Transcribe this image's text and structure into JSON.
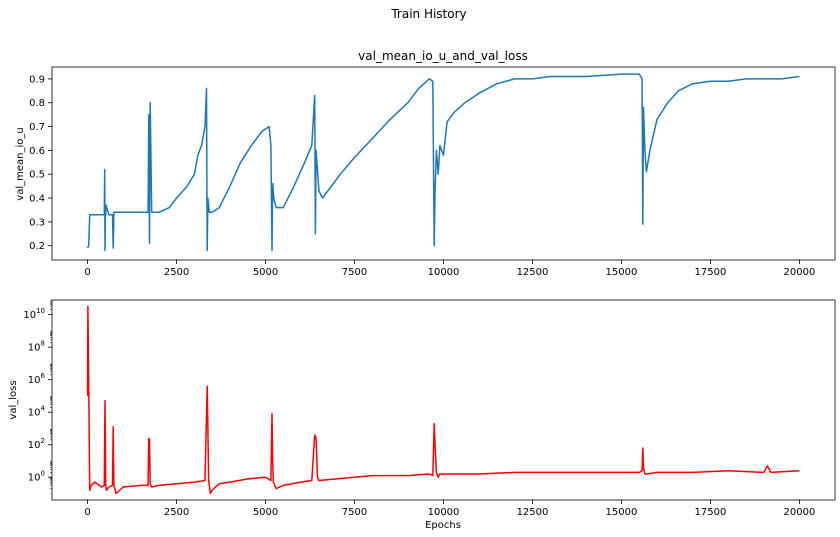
{
  "figure": {
    "suptitle": "Train History"
  },
  "chart_data": [
    {
      "type": "line",
      "title": "val_mean_io_u_and_val_loss",
      "xlabel": "",
      "ylabel": "val_mean_io_u",
      "xlim": [
        -1000,
        21000
      ],
      "ylim": [
        0.14,
        0.95
      ],
      "xticks": [
        0,
        2500,
        5000,
        7500,
        10000,
        12500,
        15000,
        17500,
        20000
      ],
      "xtick_labels": [
        "0",
        "2500",
        "5000",
        "7500",
        "10000",
        "12500",
        "15000",
        "17500",
        "20000"
      ],
      "yticks": [
        0.2,
        0.3,
        0.4,
        0.5,
        0.6,
        0.7,
        0.8,
        0.9
      ],
      "ytick_labels": [
        "0.2",
        "0.3",
        "0.4",
        "0.5",
        "0.6",
        "0.7",
        "0.8",
        "0.9"
      ],
      "grid": false,
      "series": [
        {
          "color": "#1f77b4",
          "x": [
            0,
            30,
            60,
            100,
            200,
            400,
            470,
            480,
            490,
            500,
            510,
            520,
            600,
            700,
            720,
            740,
            1000,
            1500,
            1700,
            1720,
            1740,
            1760,
            1800,
            2000,
            2300,
            2500,
            2800,
            3000,
            3100,
            3200,
            3300,
            3340,
            3360,
            3380,
            3420,
            3500,
            3700,
            4000,
            4300,
            4600,
            4900,
            5100,
            5150,
            5180,
            5200,
            5230,
            5300,
            5500,
            5800,
            6100,
            6300,
            6380,
            6400,
            6420,
            6500,
            6600,
            6800,
            7100,
            7500,
            8000,
            8500,
            9000,
            9300,
            9600,
            9700,
            9740,
            9760,
            9800,
            9850,
            9900,
            10000,
            10100,
            10300,
            10600,
            11000,
            11500,
            12000,
            12500,
            13000,
            14000,
            15000,
            15500,
            15580,
            15600,
            15620,
            15660,
            15700,
            15800,
            16000,
            16300,
            16600,
            17000,
            17500,
            18000,
            18500,
            19000,
            19500,
            20000
          ],
          "y": [
            0.19,
            0.2,
            0.33,
            0.33,
            0.33,
            0.33,
            0.33,
            0.52,
            0.18,
            0.33,
            0.33,
            0.37,
            0.33,
            0.33,
            0.19,
            0.34,
            0.34,
            0.34,
            0.34,
            0.75,
            0.21,
            0.8,
            0.34,
            0.34,
            0.36,
            0.4,
            0.45,
            0.5,
            0.58,
            0.62,
            0.7,
            0.86,
            0.18,
            0.4,
            0.34,
            0.34,
            0.36,
            0.45,
            0.55,
            0.62,
            0.68,
            0.7,
            0.62,
            0.18,
            0.46,
            0.4,
            0.36,
            0.36,
            0.45,
            0.55,
            0.62,
            0.83,
            0.25,
            0.6,
            0.43,
            0.4,
            0.44,
            0.5,
            0.57,
            0.65,
            0.73,
            0.8,
            0.86,
            0.9,
            0.89,
            0.2,
            0.42,
            0.6,
            0.5,
            0.62,
            0.58,
            0.72,
            0.76,
            0.8,
            0.84,
            0.88,
            0.9,
            0.9,
            0.91,
            0.91,
            0.92,
            0.92,
            0.9,
            0.29,
            0.78,
            0.6,
            0.51,
            0.6,
            0.73,
            0.8,
            0.85,
            0.88,
            0.89,
            0.89,
            0.9,
            0.9,
            0.9,
            0.91
          ]
        }
      ]
    },
    {
      "type": "line",
      "title": "",
      "xlabel": "Epochs",
      "ylabel": "val_loss",
      "yscale": "log",
      "xlim": [
        -1000,
        21000
      ],
      "ylim_log10": [
        -1.4,
        10.9
      ],
      "xticks": [
        0,
        2500,
        5000,
        7500,
        10000,
        12500,
        15000,
        17500,
        20000
      ],
      "xtick_labels": [
        "0",
        "2500",
        "5000",
        "7500",
        "10000",
        "12500",
        "15000",
        "17500",
        "20000"
      ],
      "yticks_log10": [
        0,
        2,
        4,
        6,
        8,
        10
      ],
      "ytick_bases": [
        "10",
        "10",
        "10",
        "10",
        "10",
        "10"
      ],
      "ytick_exponents": [
        "0",
        "2",
        "4",
        "6",
        "8",
        "10"
      ],
      "grid": false,
      "series": [
        {
          "color": "#ff0000",
          "x": [
            0,
            10,
            30,
            60,
            100,
            200,
            400,
            470,
            490,
            500,
            510,
            530,
            600,
            700,
            720,
            740,
            800,
            1000,
            1500,
            1700,
            1720,
            1740,
            1760,
            1800,
            2000,
            2500,
            3000,
            3300,
            3360,
            3380,
            3400,
            3420,
            3450,
            3500,
            3700,
            4000,
            4500,
            5000,
            5150,
            5180,
            5200,
            5220,
            5300,
            5500,
            6000,
            6300,
            6380,
            6420,
            6460,
            6500,
            7000,
            7500,
            8000,
            9000,
            9600,
            9700,
            9740,
            9760,
            9800,
            9850,
            9900,
            10000,
            11000,
            12000,
            13000,
            14000,
            15000,
            15500,
            15580,
            15600,
            15620,
            15660,
            15700,
            16000,
            17000,
            18000,
            19000,
            19100,
            19200,
            20000
          ],
          "y_log10": [
            5.0,
            10.5,
            6.0,
            -0.8,
            -0.5,
            -0.3,
            -0.6,
            -0.5,
            4.7,
            2.0,
            -0.5,
            -0.8,
            -0.6,
            -0.5,
            3.1,
            -0.5,
            -1.0,
            -0.6,
            -0.5,
            -0.5,
            2.4,
            2.3,
            -0.4,
            -0.6,
            -0.5,
            -0.4,
            -0.3,
            -0.2,
            5.6,
            3.0,
            -0.1,
            -0.5,
            -1.0,
            -0.8,
            -0.4,
            -0.3,
            -0.1,
            0.0,
            -0.2,
            3.9,
            1.0,
            -0.3,
            -0.7,
            -0.5,
            -0.3,
            -0.2,
            2.6,
            2.4,
            0.0,
            -0.2,
            -0.1,
            0.0,
            0.1,
            0.1,
            0.2,
            0.1,
            3.3,
            2.0,
            0.3,
            0.0,
            0.2,
            0.2,
            0.2,
            0.3,
            0.3,
            0.3,
            0.3,
            0.3,
            0.4,
            1.8,
            0.6,
            0.2,
            0.2,
            0.3,
            0.3,
            0.4,
            0.3,
            0.7,
            0.3,
            0.4
          ]
        }
      ]
    }
  ]
}
